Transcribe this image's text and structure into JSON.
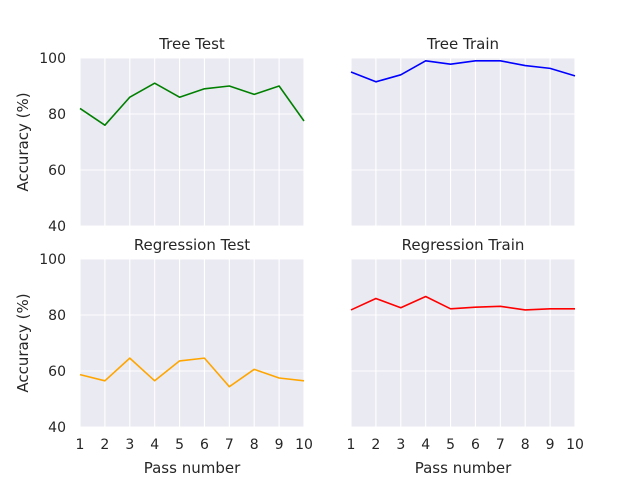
{
  "chart_data": [
    {
      "type": "line",
      "title": "Tree Test",
      "xlabel": "",
      "ylabel": "Accuracy (%)",
      "x": [
        1,
        2,
        3,
        4,
        5,
        6,
        7,
        8,
        9,
        10
      ],
      "xlim": [
        1,
        10
      ],
      "ylim": [
        40,
        100
      ],
      "yticks": [
        40,
        60,
        80,
        100
      ],
      "series": [
        {
          "values": [
            82,
            76,
            86,
            91,
            86,
            89,
            90,
            87,
            90,
            77.5
          ],
          "color": "#008000"
        }
      ],
      "grid": true
    },
    {
      "type": "line",
      "title": "Tree Train",
      "xlabel": "",
      "ylabel": "",
      "x": [
        1,
        2,
        3,
        4,
        5,
        6,
        7,
        8,
        9,
        10
      ],
      "xlim": [
        1,
        10
      ],
      "ylim": [
        40,
        100
      ],
      "series": [
        {
          "values": [
            95,
            91.5,
            94,
            99,
            97.8,
            99,
            99,
            97.3,
            96.3,
            93.6
          ],
          "color": "#0000ff"
        }
      ],
      "grid": true
    },
    {
      "type": "line",
      "title": "Regression Test",
      "xlabel": "Pass number",
      "ylabel": "Accuracy (%)",
      "x": [
        1,
        2,
        3,
        4,
        5,
        6,
        7,
        8,
        9,
        10
      ],
      "xlim": [
        1,
        10
      ],
      "ylim": [
        40,
        100
      ],
      "yticks": [
        40,
        60,
        80,
        100
      ],
      "xticks": [
        1,
        2,
        3,
        4,
        5,
        6,
        7,
        8,
        9,
        10
      ],
      "series": [
        {
          "values": [
            58.7,
            56.5,
            64.6,
            56.5,
            63.6,
            64.6,
            54.4,
            60.6,
            57.5,
            56.5
          ],
          "color": "#ffa500"
        }
      ],
      "grid": true
    },
    {
      "type": "line",
      "title": "Regression Train",
      "xlabel": "Pass number",
      "ylabel": "",
      "x": [
        1,
        2,
        3,
        4,
        5,
        6,
        7,
        8,
        9,
        10
      ],
      "xlim": [
        1,
        10
      ],
      "ylim": [
        40,
        100
      ],
      "xticks": [
        1,
        2,
        3,
        4,
        5,
        6,
        7,
        8,
        9,
        10
      ],
      "series": [
        {
          "values": [
            81.8,
            85.9,
            82.6,
            86.6,
            82.2,
            82.8,
            83.1,
            81.8,
            82.2,
            82.2
          ],
          "color": "#ff0000"
        }
      ],
      "grid": true
    }
  ]
}
